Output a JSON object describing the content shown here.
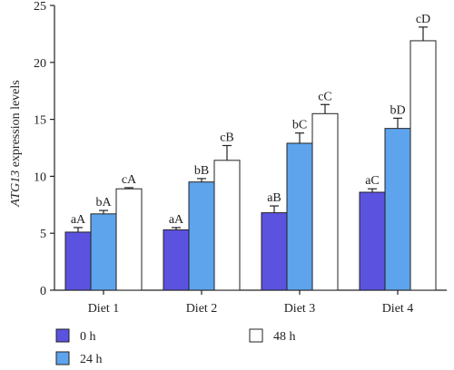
{
  "chart_data": {
    "type": "bar",
    "ylabel_italic": "ATG13",
    "ylabel_rest": " expression levels",
    "xlabel": "",
    "ylim": [
      0,
      25
    ],
    "yticks": [
      0,
      5,
      10,
      15,
      20,
      25
    ],
    "categories": [
      "Diet 1",
      "Diet 2",
      "Diet 3",
      "Diet 4"
    ],
    "series": [
      {
        "name": "0 h",
        "color": "#5b52e0",
        "values": [
          5.1,
          5.3,
          6.8,
          8.6
        ],
        "errors": [
          0.4,
          0.2,
          0.6,
          0.3
        ],
        "labels": [
          "aA",
          "aA",
          "aB",
          "aC"
        ]
      },
      {
        "name": "24 h",
        "color": "#5ea4ec",
        "values": [
          6.7,
          9.5,
          12.9,
          14.2
        ],
        "errors": [
          0.3,
          0.3,
          0.9,
          0.9
        ],
        "labels": [
          "bA",
          "bB",
          "bC",
          "bD"
        ]
      },
      {
        "name": "48 h",
        "color": "#ffffff",
        "values": [
          8.9,
          11.4,
          15.5,
          21.9
        ],
        "errors": [
          0.1,
          1.3,
          0.8,
          1.2
        ],
        "labels": [
          "cA",
          "cB",
          "cC",
          "cD"
        ]
      }
    ],
    "legend_position": "bottom",
    "grid": false
  }
}
